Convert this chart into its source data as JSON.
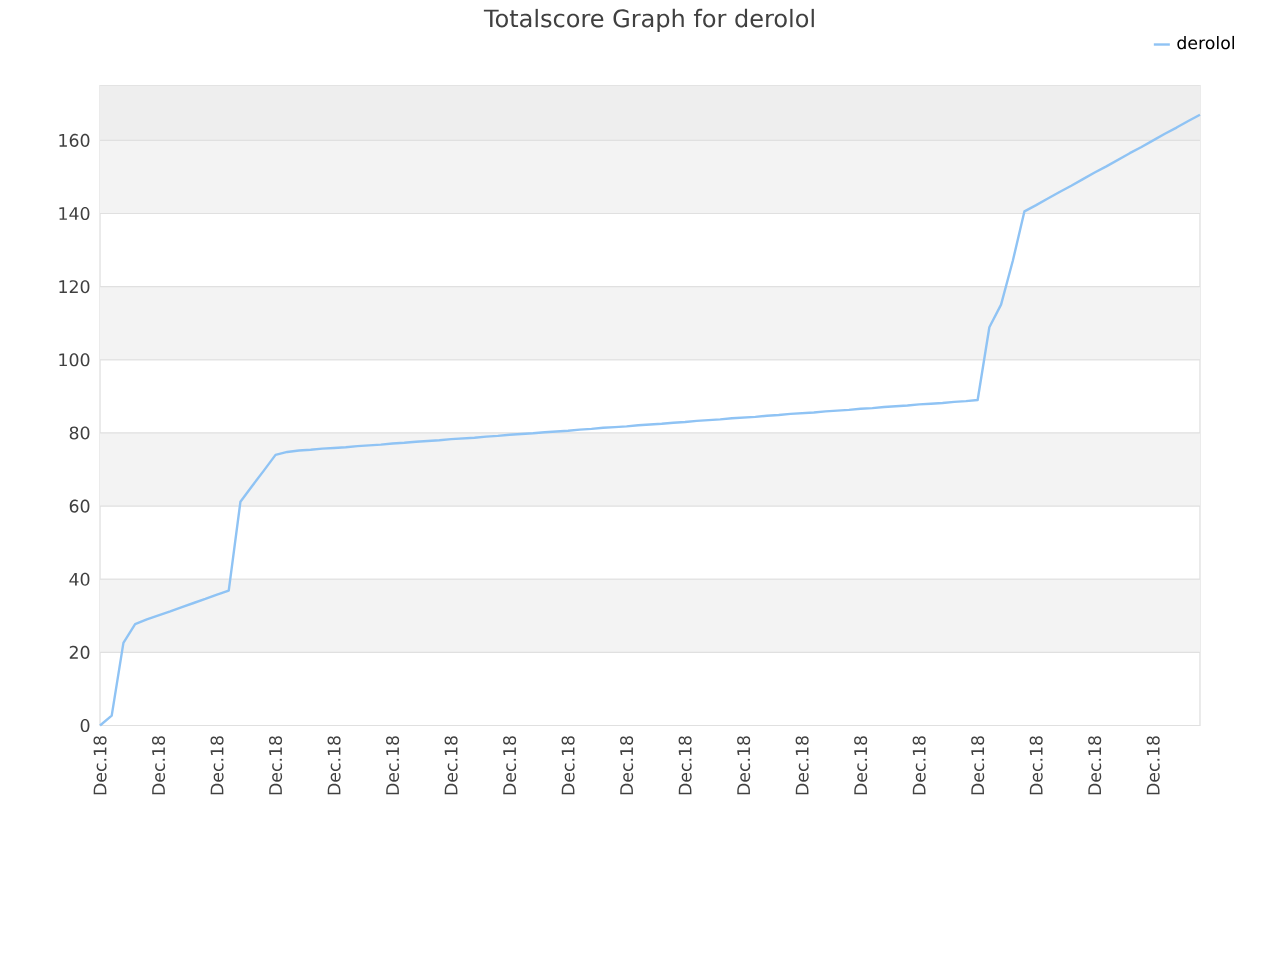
{
  "chart_data": {
    "type": "line",
    "title": "Totalscore Graph for derolol",
    "categories": [
      "Dec.18",
      null,
      null,
      null,
      null,
      "Dec.18",
      null,
      null,
      null,
      null,
      "Dec.18",
      null,
      null,
      null,
      null,
      "Dec.18",
      null,
      null,
      null,
      null,
      "Dec.18",
      null,
      null,
      null,
      null,
      "Dec.18",
      null,
      null,
      null,
      null,
      "Dec.18",
      null,
      null,
      null,
      null,
      "Dec.18",
      null,
      null,
      null,
      null,
      "Dec.18",
      null,
      null,
      null,
      null,
      "Dec.18",
      null,
      null,
      null,
      null,
      "Dec.18",
      null,
      null,
      null,
      null,
      "Dec.18",
      null,
      null,
      null,
      null,
      "Dec.18",
      null,
      null,
      null,
      null,
      "Dec.18",
      null,
      null,
      null,
      null,
      "Dec.18",
      null,
      null,
      null,
      null,
      "Dec.18",
      null,
      null,
      null,
      null,
      "Dec.18",
      null,
      null,
      null,
      null,
      "Dec.18",
      null,
      null,
      null,
      null,
      "Dec.18",
      null,
      null,
      null,
      null
    ],
    "ylim": [
      0,
      175
    ],
    "yticks": [
      0,
      20,
      40,
      60,
      80,
      100,
      120,
      140,
      160
    ],
    "grid": "y",
    "legend": "top right",
    "marker": "none",
    "line_style": "solid",
    "bands": [
      {
        "axis": "y",
        "from": 20,
        "to": 40,
        "color": "#f3f3f3"
      },
      {
        "axis": "y",
        "from": 60,
        "to": 80,
        "color": "#f3f3f3"
      },
      {
        "axis": "y",
        "from": 100,
        "to": 120,
        "color": "#f3f3f3"
      },
      {
        "axis": "y",
        "from": 140,
        "to": 160,
        "color": "#f3f3f3"
      },
      {
        "axis": "y",
        "from": 160,
        "to": 175,
        "color": "#eeeeee"
      }
    ],
    "series": [
      {
        "name": "derolol",
        "color": "#8fc3f4",
        "values": [
          0,
          2.7,
          22.6,
          27.7,
          29.0,
          30.1,
          31.2,
          32.4,
          33.5,
          34.6,
          35.8,
          36.9,
          61.2,
          65.5,
          69.7,
          74.0,
          74.8,
          75.2,
          75.4,
          75.7,
          75.9,
          76.1,
          76.4,
          76.6,
          76.8,
          77.1,
          77.3,
          77.6,
          77.8,
          78.0,
          78.3,
          78.5,
          78.7,
          79.0,
          79.2,
          79.5,
          79.7,
          79.9,
          80.2,
          80.4,
          80.6,
          80.9,
          81.1,
          81.4,
          81.6,
          81.8,
          82.1,
          82.3,
          82.5,
          82.8,
          83.0,
          83.3,
          83.5,
          83.7,
          84.0,
          84.2,
          84.4,
          84.7,
          84.9,
          85.2,
          85.4,
          85.6,
          85.9,
          86.1,
          86.3,
          86.6,
          86.8,
          87.1,
          87.3,
          87.5,
          87.8,
          88.0,
          88.2,
          88.5,
          88.7,
          89.0,
          108.9,
          115.1,
          127.0,
          140.6,
          142.3,
          144.1,
          145.9,
          147.6,
          149.4,
          151.2,
          152.9,
          154.7,
          156.5,
          158.2,
          160.0,
          161.8,
          163.5,
          165.3,
          167.0
        ]
      }
    ]
  }
}
